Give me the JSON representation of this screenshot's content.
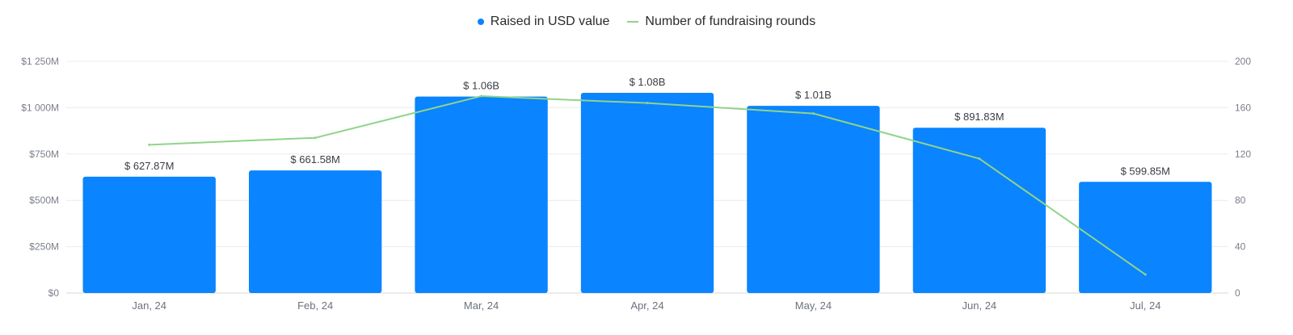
{
  "legend": {
    "bars_label": "Raised in USD value",
    "line_label": "Number of fundraising rounds"
  },
  "colors": {
    "bar": "#0a84ff",
    "line": "#8fd48a",
    "grid": "#ececec",
    "axis": "#d9d9d9"
  },
  "chart_data": {
    "type": "bar",
    "categories": [
      "Jan, 24",
      "Feb, 24",
      "Mar, 24",
      "Apr, 24",
      "May, 24",
      "Jun, 24",
      "Jul, 24"
    ],
    "series": [
      {
        "name": "Raised in USD value",
        "type": "bar",
        "axis": "left",
        "values": [
          627.87,
          661.58,
          1060,
          1080,
          1010,
          891.83,
          599.85
        ],
        "labels": [
          "$ 627.87M",
          "$ 661.58M",
          "$ 1.06B",
          "$ 1.08B",
          "$ 1.01B",
          "$ 891.83M",
          "$ 599.85M"
        ]
      },
      {
        "name": "Number of fundraising rounds",
        "type": "line",
        "axis": "right",
        "values": [
          128,
          134,
          170,
          164,
          155,
          116,
          16
        ]
      }
    ],
    "y_left": {
      "range": [
        0,
        1250
      ],
      "ticks": [
        0,
        250,
        500,
        750,
        1000,
        1250
      ],
      "tick_labels": [
        "$0",
        "$250M",
        "$500M",
        "$750M",
        "$1 000M",
        "$1 250M"
      ]
    },
    "y_right": {
      "range": [
        0,
        200
      ],
      "ticks": [
        0,
        40,
        80,
        120,
        160,
        200
      ],
      "tick_labels": [
        "0",
        "40",
        "80",
        "120",
        "160",
        "200"
      ]
    },
    "grid": true,
    "legend_position": "top-center"
  }
}
